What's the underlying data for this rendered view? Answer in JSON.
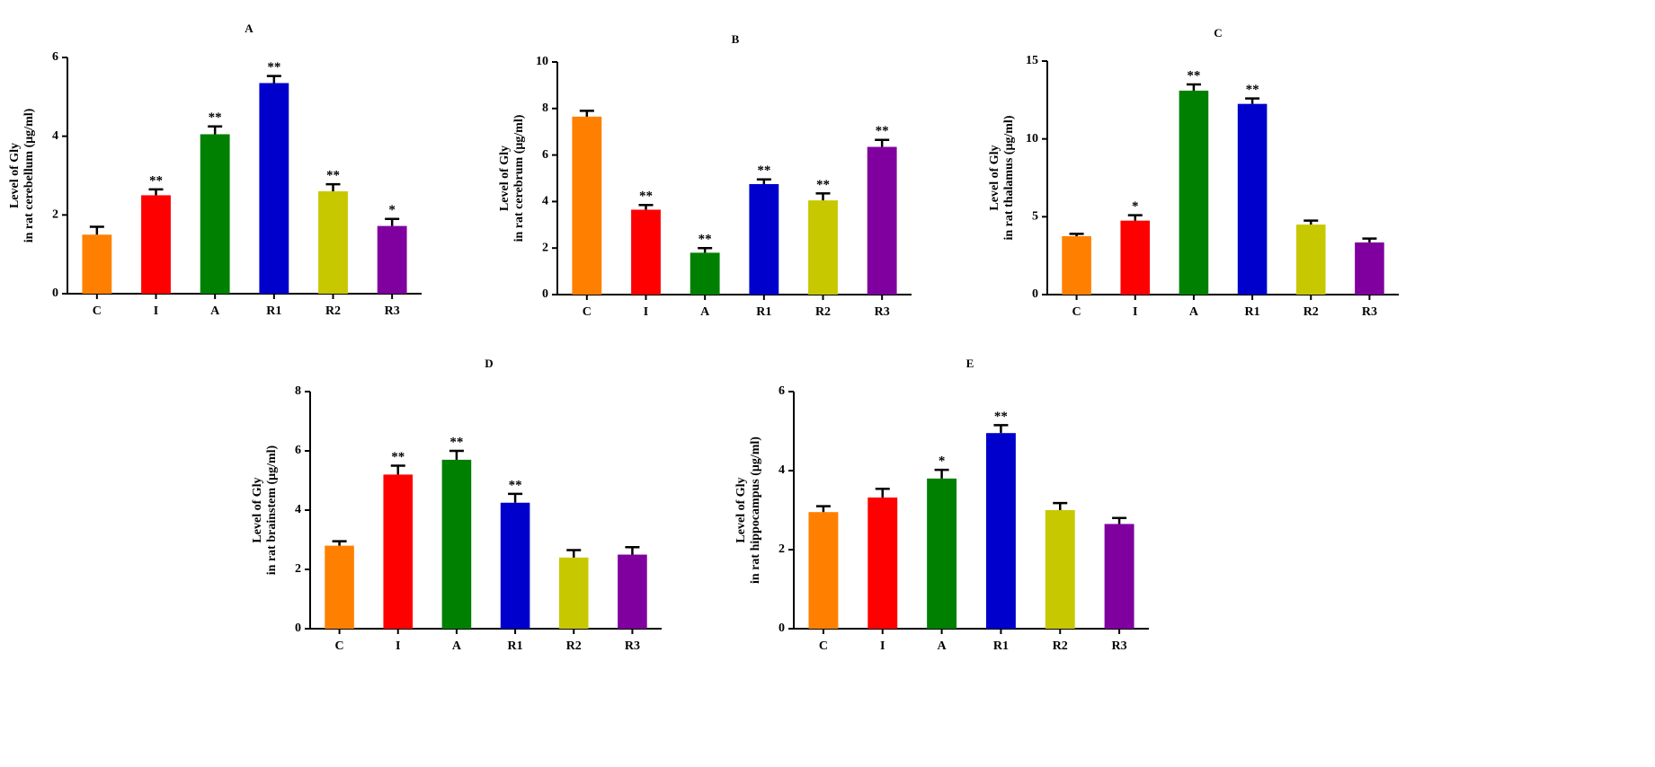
{
  "chart_data": [
    {
      "type": "bar",
      "title": "A",
      "ylabel": [
        "Level of Gly",
        "in rat cerebellum (μg/ml)"
      ],
      "categories": [
        "C",
        "I",
        "A",
        "R1",
        "R2",
        "R3"
      ],
      "values": [
        1.5,
        2.5,
        4.05,
        5.35,
        2.6,
        1.72
      ],
      "errors": [
        0.2,
        0.15,
        0.2,
        0.18,
        0.18,
        0.18
      ],
      "annotations": [
        null,
        "**",
        "**",
        "**",
        "**",
        "*"
      ],
      "colors": [
        "#ff8000",
        "#ff0000",
        "#008000",
        "#0000cc",
        "#c8c800",
        "#7f009f"
      ],
      "ylim": [
        0,
        6
      ],
      "yticks": [
        0,
        2,
        4,
        6
      ]
    },
    {
      "type": "bar",
      "title": "B",
      "ylabel": [
        "Level of Gly",
        "in rat cerebrum (μg/ml)"
      ],
      "categories": [
        "C",
        "I",
        "A",
        "R1",
        "R2",
        "R3"
      ],
      "values": [
        7.65,
        3.65,
        1.8,
        4.75,
        4.05,
        6.35
      ],
      "errors": [
        0.25,
        0.2,
        0.2,
        0.2,
        0.3,
        0.3
      ],
      "annotations": [
        null,
        "**",
        "**",
        "**",
        "**",
        "**"
      ],
      "colors": [
        "#ff8000",
        "#ff0000",
        "#008000",
        "#0000cc",
        "#c8c800",
        "#7f009f"
      ],
      "ylim": [
        0,
        10
      ],
      "yticks": [
        0,
        2,
        4,
        6,
        8,
        10
      ]
    },
    {
      "type": "bar",
      "title": "C",
      "ylabel": [
        "Level of Gly",
        "in rat thalamus (μg/ml)"
      ],
      "categories": [
        "C",
        "I",
        "A",
        "R1",
        "R2",
        "R3"
      ],
      "values": [
        3.75,
        4.75,
        13.1,
        12.25,
        4.5,
        3.35
      ],
      "errors": [
        0.15,
        0.35,
        0.4,
        0.35,
        0.25,
        0.25
      ],
      "annotations": [
        null,
        "*",
        "**",
        "**",
        null,
        null
      ],
      "colors": [
        "#ff8000",
        "#ff0000",
        "#008000",
        "#0000cc",
        "#c8c800",
        "#7f009f"
      ],
      "ylim": [
        0,
        15
      ],
      "yticks": [
        0,
        5,
        10,
        15
      ]
    },
    {
      "type": "bar",
      "title": "D",
      "ylabel": [
        "Level of Gly",
        "in rat brainstem (μg/ml)"
      ],
      "categories": [
        "C",
        "I",
        "A",
        "R1",
        "R2",
        "R3"
      ],
      "values": [
        2.8,
        5.2,
        5.7,
        4.25,
        2.4,
        2.5
      ],
      "errors": [
        0.15,
        0.3,
        0.3,
        0.3,
        0.25,
        0.25
      ],
      "annotations": [
        null,
        "**",
        "**",
        "**",
        null,
        null
      ],
      "colors": [
        "#ff8000",
        "#ff0000",
        "#008000",
        "#0000cc",
        "#c8c800",
        "#7f009f"
      ],
      "ylim": [
        0,
        8
      ],
      "yticks": [
        0,
        2,
        4,
        6,
        8
      ]
    },
    {
      "type": "bar",
      "title": "E",
      "ylabel": [
        "Level of Gly",
        "in rat hippocampus (μg/ml)"
      ],
      "categories": [
        "C",
        "I",
        "A",
        "R1",
        "R2",
        "R3"
      ],
      "values": [
        2.95,
        3.32,
        3.8,
        4.95,
        3.0,
        2.65
      ],
      "errors": [
        0.15,
        0.22,
        0.22,
        0.2,
        0.18,
        0.15
      ],
      "annotations": [
        null,
        null,
        "*",
        "**",
        null,
        null
      ],
      "colors": [
        "#ff8000",
        "#ff0000",
        "#008000",
        "#0000cc",
        "#c8c800",
        "#7f009f"
      ],
      "ylim": [
        0,
        6
      ],
      "yticks": [
        0,
        2,
        4,
        6
      ]
    }
  ]
}
